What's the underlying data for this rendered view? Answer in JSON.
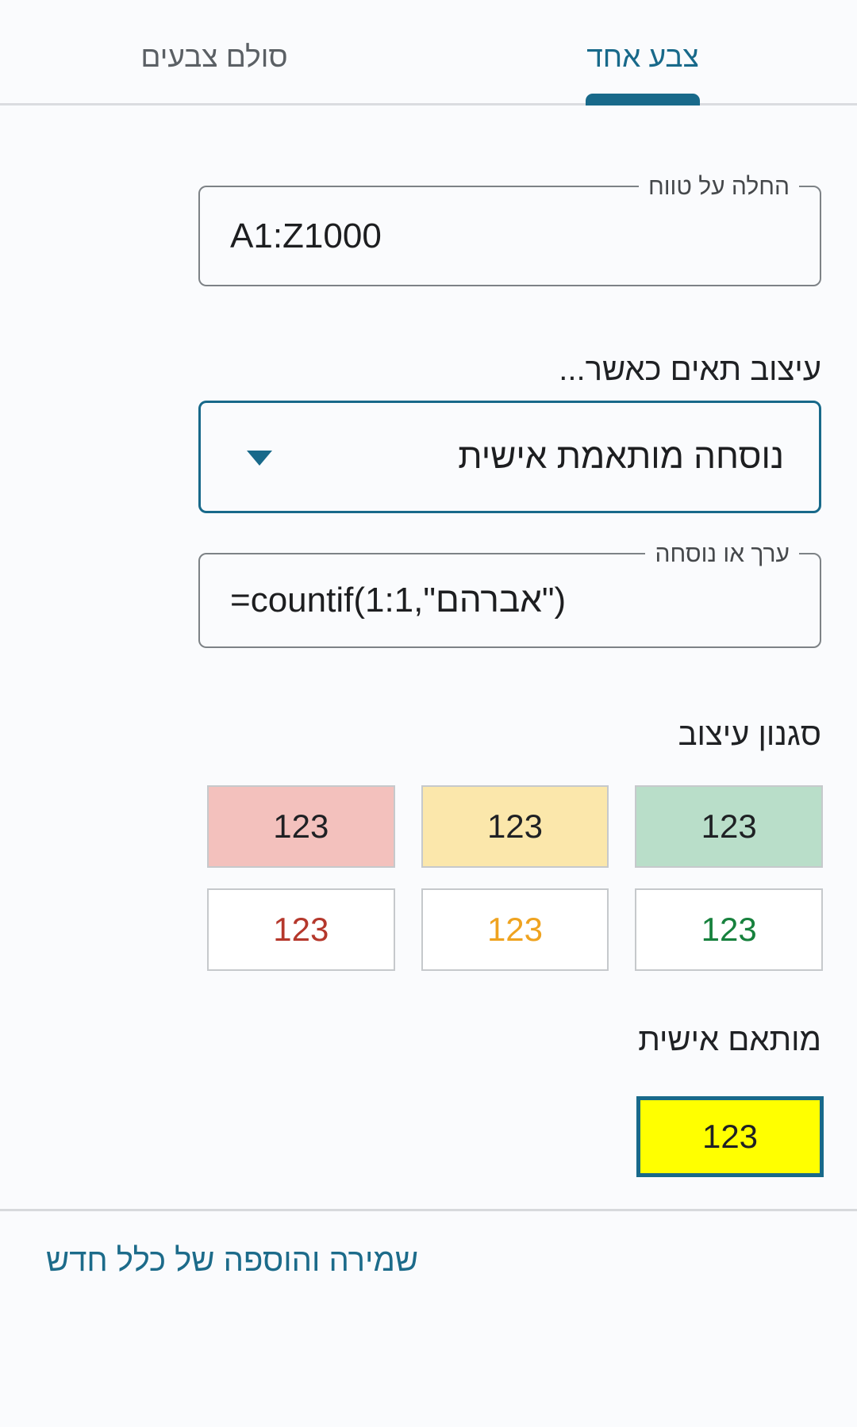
{
  "tabs": {
    "color_scale": "סולם צבעים",
    "single_color": "צבע אחד"
  },
  "range_field": {
    "label": "החלה על טווח",
    "value": "A1:Z1000"
  },
  "condition": {
    "label": "עיצוב תאים כאשר...",
    "selected_option": "נוסחה מותאמת אישית",
    "value_field": {
      "label": "ערך או נוסחה",
      "value": "=countif(1:1,\"אברהם\")"
    }
  },
  "style": {
    "title": "סגנון עיצוב",
    "sample": "123",
    "presets": [
      {
        "name": "red-fill",
        "background": "#f3c1bd",
        "text_color": "#1f2124"
      },
      {
        "name": "yellow-fill",
        "background": "#fbe7ab",
        "text_color": "#1f2124"
      },
      {
        "name": "green-fill",
        "background": "#b9dec9",
        "text_color": "#1f2124"
      },
      {
        "name": "red-text",
        "background": "#ffffff",
        "text_color": "#b5382c"
      },
      {
        "name": "orange-text",
        "background": "#ffffff",
        "text_color": "#efa320"
      },
      {
        "name": "green-text",
        "background": "#ffffff",
        "text_color": "#17813d"
      }
    ],
    "custom_title": "מותאם אישית",
    "custom_swatch": {
      "background": "#ffff00",
      "text_color": "#1f2124"
    }
  },
  "footer": {
    "save_link": "שמירה והוספה של כלל חדש"
  },
  "theme": {
    "accent": "#18698a",
    "tab_inactive": "#5b6065",
    "divider": "#dadce0"
  }
}
